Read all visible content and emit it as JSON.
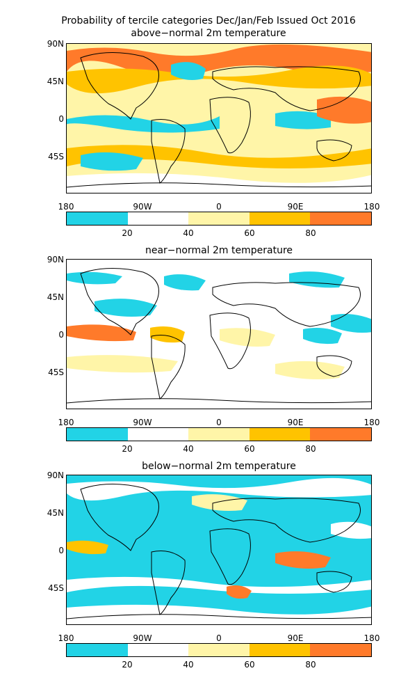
{
  "title": {
    "line1": "Probability of tercile categories Dec/Jan/Feb Issued Oct 2016",
    "line2": "above−normal 2m temperature"
  },
  "panels": [
    {
      "id": "above",
      "title": "above−normal 2m temperature",
      "dominant": "warm",
      "lat_labels": [
        "90N",
        "45N",
        "0",
        "45S"
      ],
      "lon_labels": [
        "180",
        "90W",
        "0",
        "90E",
        "180"
      ]
    },
    {
      "id": "near",
      "title": "near−normal 2m temperature",
      "dominant": "neutral",
      "lat_labels": [
        "90N",
        "45N",
        "0",
        "45S"
      ],
      "lon_labels": [
        "180",
        "90W",
        "0",
        "90E",
        "180"
      ]
    },
    {
      "id": "below",
      "title": "below−normal 2m temperature",
      "dominant": "cold",
      "lat_labels": [
        "90N",
        "45N",
        "0",
        "45S"
      ],
      "lon_labels": [
        "180",
        "90W",
        "0",
        "90E",
        "180"
      ]
    }
  ],
  "colorbar": {
    "colors": [
      "#22d3e6",
      "#ffffff",
      "#fff5a8",
      "#ffc300",
      "#ff7a2a"
    ],
    "labels": [
      "20",
      "40",
      "60",
      "80"
    ]
  },
  "colors": {
    "land_outline": "#000000",
    "cyan": "#22d3e6",
    "white": "#ffffff",
    "light_yellow": "#fff5a8",
    "orange_yellow": "#ffc300",
    "orange": "#ff7a2a"
  }
}
